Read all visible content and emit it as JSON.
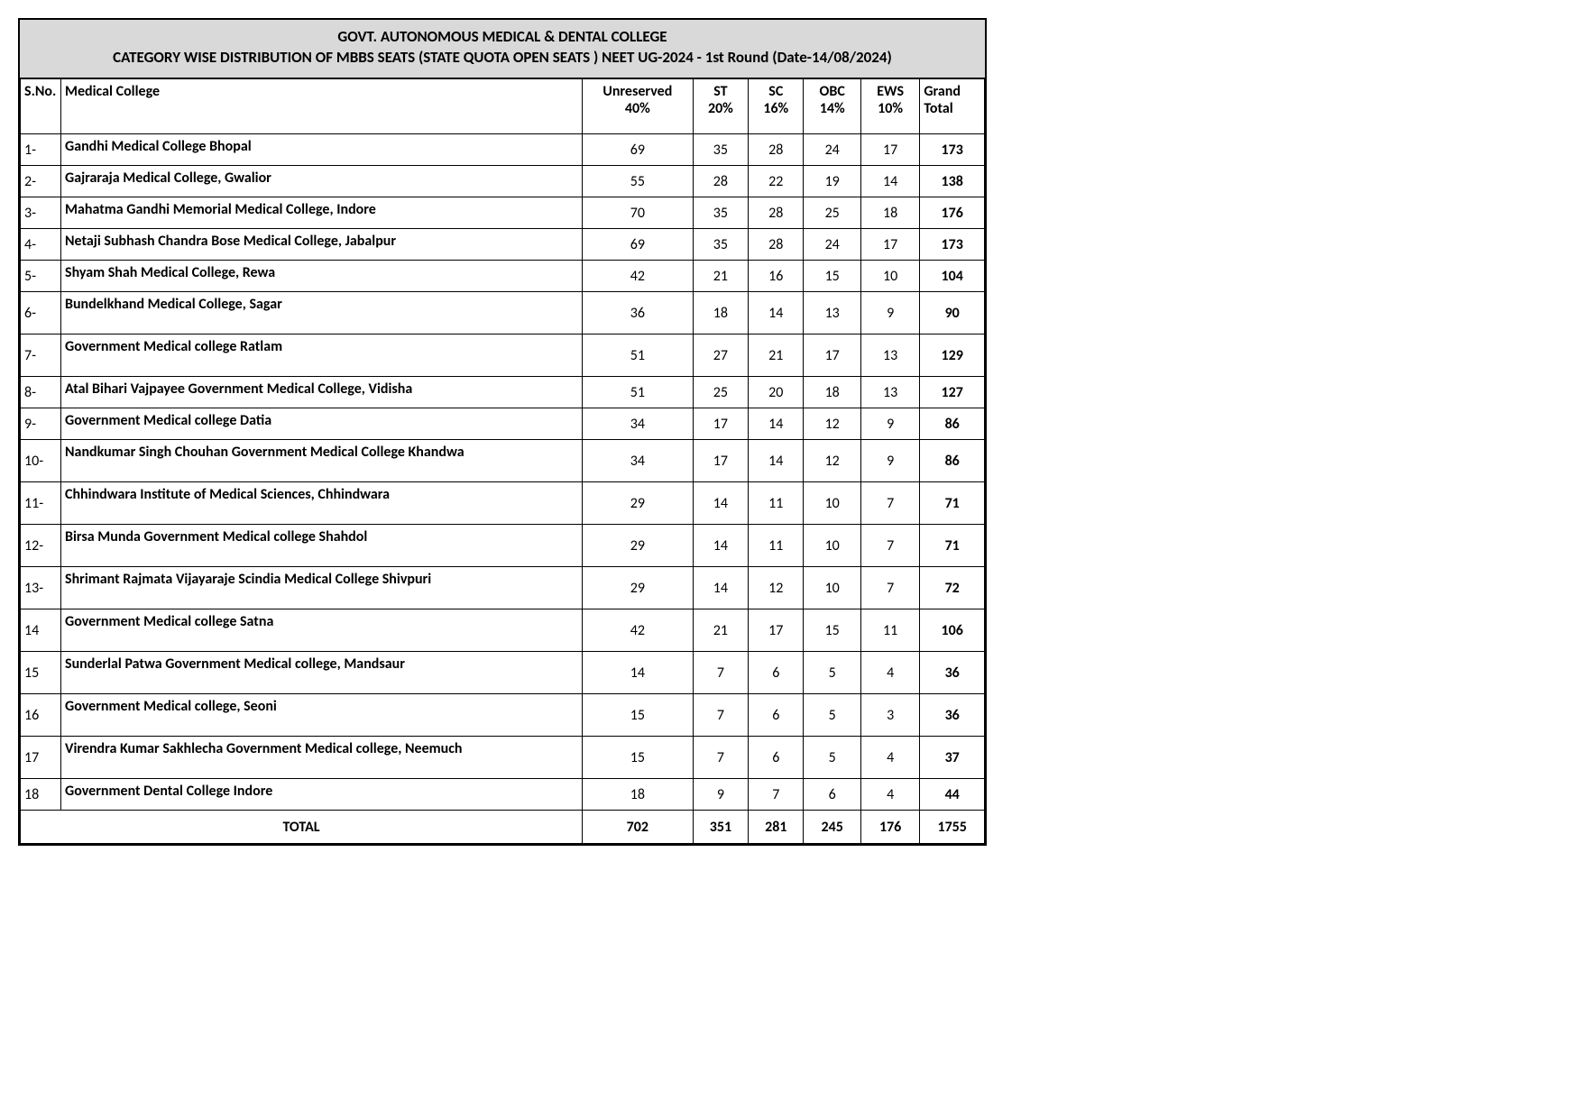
{
  "header": {
    "title": "GOVT. AUTONOMOUS MEDICAL & DENTAL  COLLEGE",
    "subtitle": "CATEGORY WISE DISTRIBUTION OF  MBBS SEATS (STATE QUOTA OPEN SEATS ) NEET UG-2024 - 1st Round (Date-14/08/2024)"
  },
  "columns": {
    "sno": "S.No.",
    "college": "Medical College",
    "unreserved_l1": "Unreserved",
    "unreserved_l2": "40%",
    "st_l1": "ST",
    "st_l2": "20%",
    "sc_l1": "SC",
    "sc_l2": "16%",
    "obc_l1": "OBC",
    "obc_l2": "14%",
    "ews_l1": "EWS",
    "ews_l2": "10%",
    "gt_l1": "Grand",
    "gt_l2": "Total"
  },
  "rows": [
    {
      "sno": "1-",
      "college": "Gandhi  Medical College Bhopal",
      "unr": "69",
      "st": "35",
      "sc": "28",
      "obc": "24",
      "ews": "17",
      "gt": "173",
      "h": "s"
    },
    {
      "sno": "2-",
      "college": "Gajraraja Medical College, Gwalior",
      "unr": "55",
      "st": "28",
      "sc": "22",
      "obc": "19",
      "ews": "14",
      "gt": "138",
      "h": "s"
    },
    {
      "sno": "3-",
      "college": "Mahatma Gandhi Memorial Medical College, Indore",
      "unr": "70",
      "st": "35",
      "sc": "28",
      "obc": "25",
      "ews": "18",
      "gt": "176",
      "h": "s"
    },
    {
      "sno": "4-",
      "college": "Netaji  Subhash Chandra Bose Medical College, Jabalpur",
      "unr": "69",
      "st": "35",
      "sc": "28",
      "obc": "24",
      "ews": "17",
      "gt": "173",
      "h": "s"
    },
    {
      "sno": "5-",
      "college": "Shyam Shah Medical College, Rewa",
      "unr": "42",
      "st": "21",
      "sc": "16",
      "obc": "15",
      "ews": "10",
      "gt": "104",
      "h": "s"
    },
    {
      "sno": "6-",
      "college": "Bundelkhand Medical College, Sagar",
      "unr": "36",
      "st": "18",
      "sc": "14",
      "obc": "13",
      "ews": "9",
      "gt": "90",
      "h": "h"
    },
    {
      "sno": "7-",
      "college": "Government Medical college Ratlam",
      "unr": "51",
      "st": "27",
      "sc": "21",
      "obc": "17",
      "ews": "13",
      "gt": "129",
      "h": "h"
    },
    {
      "sno": "8-",
      "college": "Atal Bihari Vajpayee Government Medical College, Vidisha",
      "unr": "51",
      "st": "25",
      "sc": "20",
      "obc": "18",
      "ews": "13",
      "gt": "127",
      "h": "s"
    },
    {
      "sno": "9-",
      "college": "Government Medical college Datia",
      "unr": "34",
      "st": "17",
      "sc": "14",
      "obc": "12",
      "ews": "9",
      "gt": "86",
      "h": "s"
    },
    {
      "sno": "10-",
      "college": "Nandkumar Singh Chouhan Government Medical College Khandwa",
      "unr": "34",
      "st": "17",
      "sc": "14",
      "obc": "12",
      "ews": "9",
      "gt": "86",
      "h": "h"
    },
    {
      "sno": "11-",
      "college": "Chhindwara Institute of Medical Sciences, Chhindwara",
      "unr": "29",
      "st": "14",
      "sc": "11",
      "obc": "10",
      "ews": "7",
      "gt": "71",
      "h": "h"
    },
    {
      "sno": "12-",
      "college": "Birsa Munda Government Medical college Shahdol",
      "unr": "29",
      "st": "14",
      "sc": "11",
      "obc": "10",
      "ews": "7",
      "gt": "71",
      "h": "h"
    },
    {
      "sno": "13-",
      "college": "Shrimant Rajmata Vijayaraje Scindia Medical College Shivpuri",
      "unr": "29",
      "st": "14",
      "sc": "12",
      "obc": "10",
      "ews": "7",
      "gt": "72",
      "h": "h"
    },
    {
      "sno": "14",
      "college": "Government Medical college Satna",
      "unr": "42",
      "st": "21",
      "sc": "17",
      "obc": "15",
      "ews": "11",
      "gt": "106",
      "h": "h"
    },
    {
      "sno": "15",
      "college": "Sunderlal Patwa Government Medical college, Mandsaur",
      "unr": "14",
      "st": "7",
      "sc": "6",
      "obc": "5",
      "ews": "4",
      "gt": "36",
      "h": "h"
    },
    {
      "sno": "16",
      "college": "Government Medical college, Seoni",
      "unr": "15",
      "st": "7",
      "sc": "6",
      "obc": "5",
      "ews": "3",
      "gt": "36",
      "h": "h"
    },
    {
      "sno": "17",
      "college": "Virendra Kumar Sakhlecha Government Medical college, Neemuch",
      "unr": "15",
      "st": "7",
      "sc": "6",
      "obc": "5",
      "ews": "4",
      "gt": "37",
      "h": "h"
    },
    {
      "sno": "18",
      "college": "Government Dental College Indore",
      "unr": "18",
      "st": "9",
      "sc": "7",
      "obc": "6",
      "ews": "4",
      "gt": "44",
      "h": "s"
    }
  ],
  "totals": {
    "label": "TOTAL",
    "unr": "702",
    "st": "351",
    "sc": "281",
    "obc": "245",
    "ews": "176",
    "gt": "1755"
  },
  "style": {
    "header_bg": "#d9d9d9",
    "border_color": "#000000",
    "font_family": "Calibri, Arial, sans-serif",
    "title_fontsize": 17,
    "cell_fontsize": 16
  }
}
